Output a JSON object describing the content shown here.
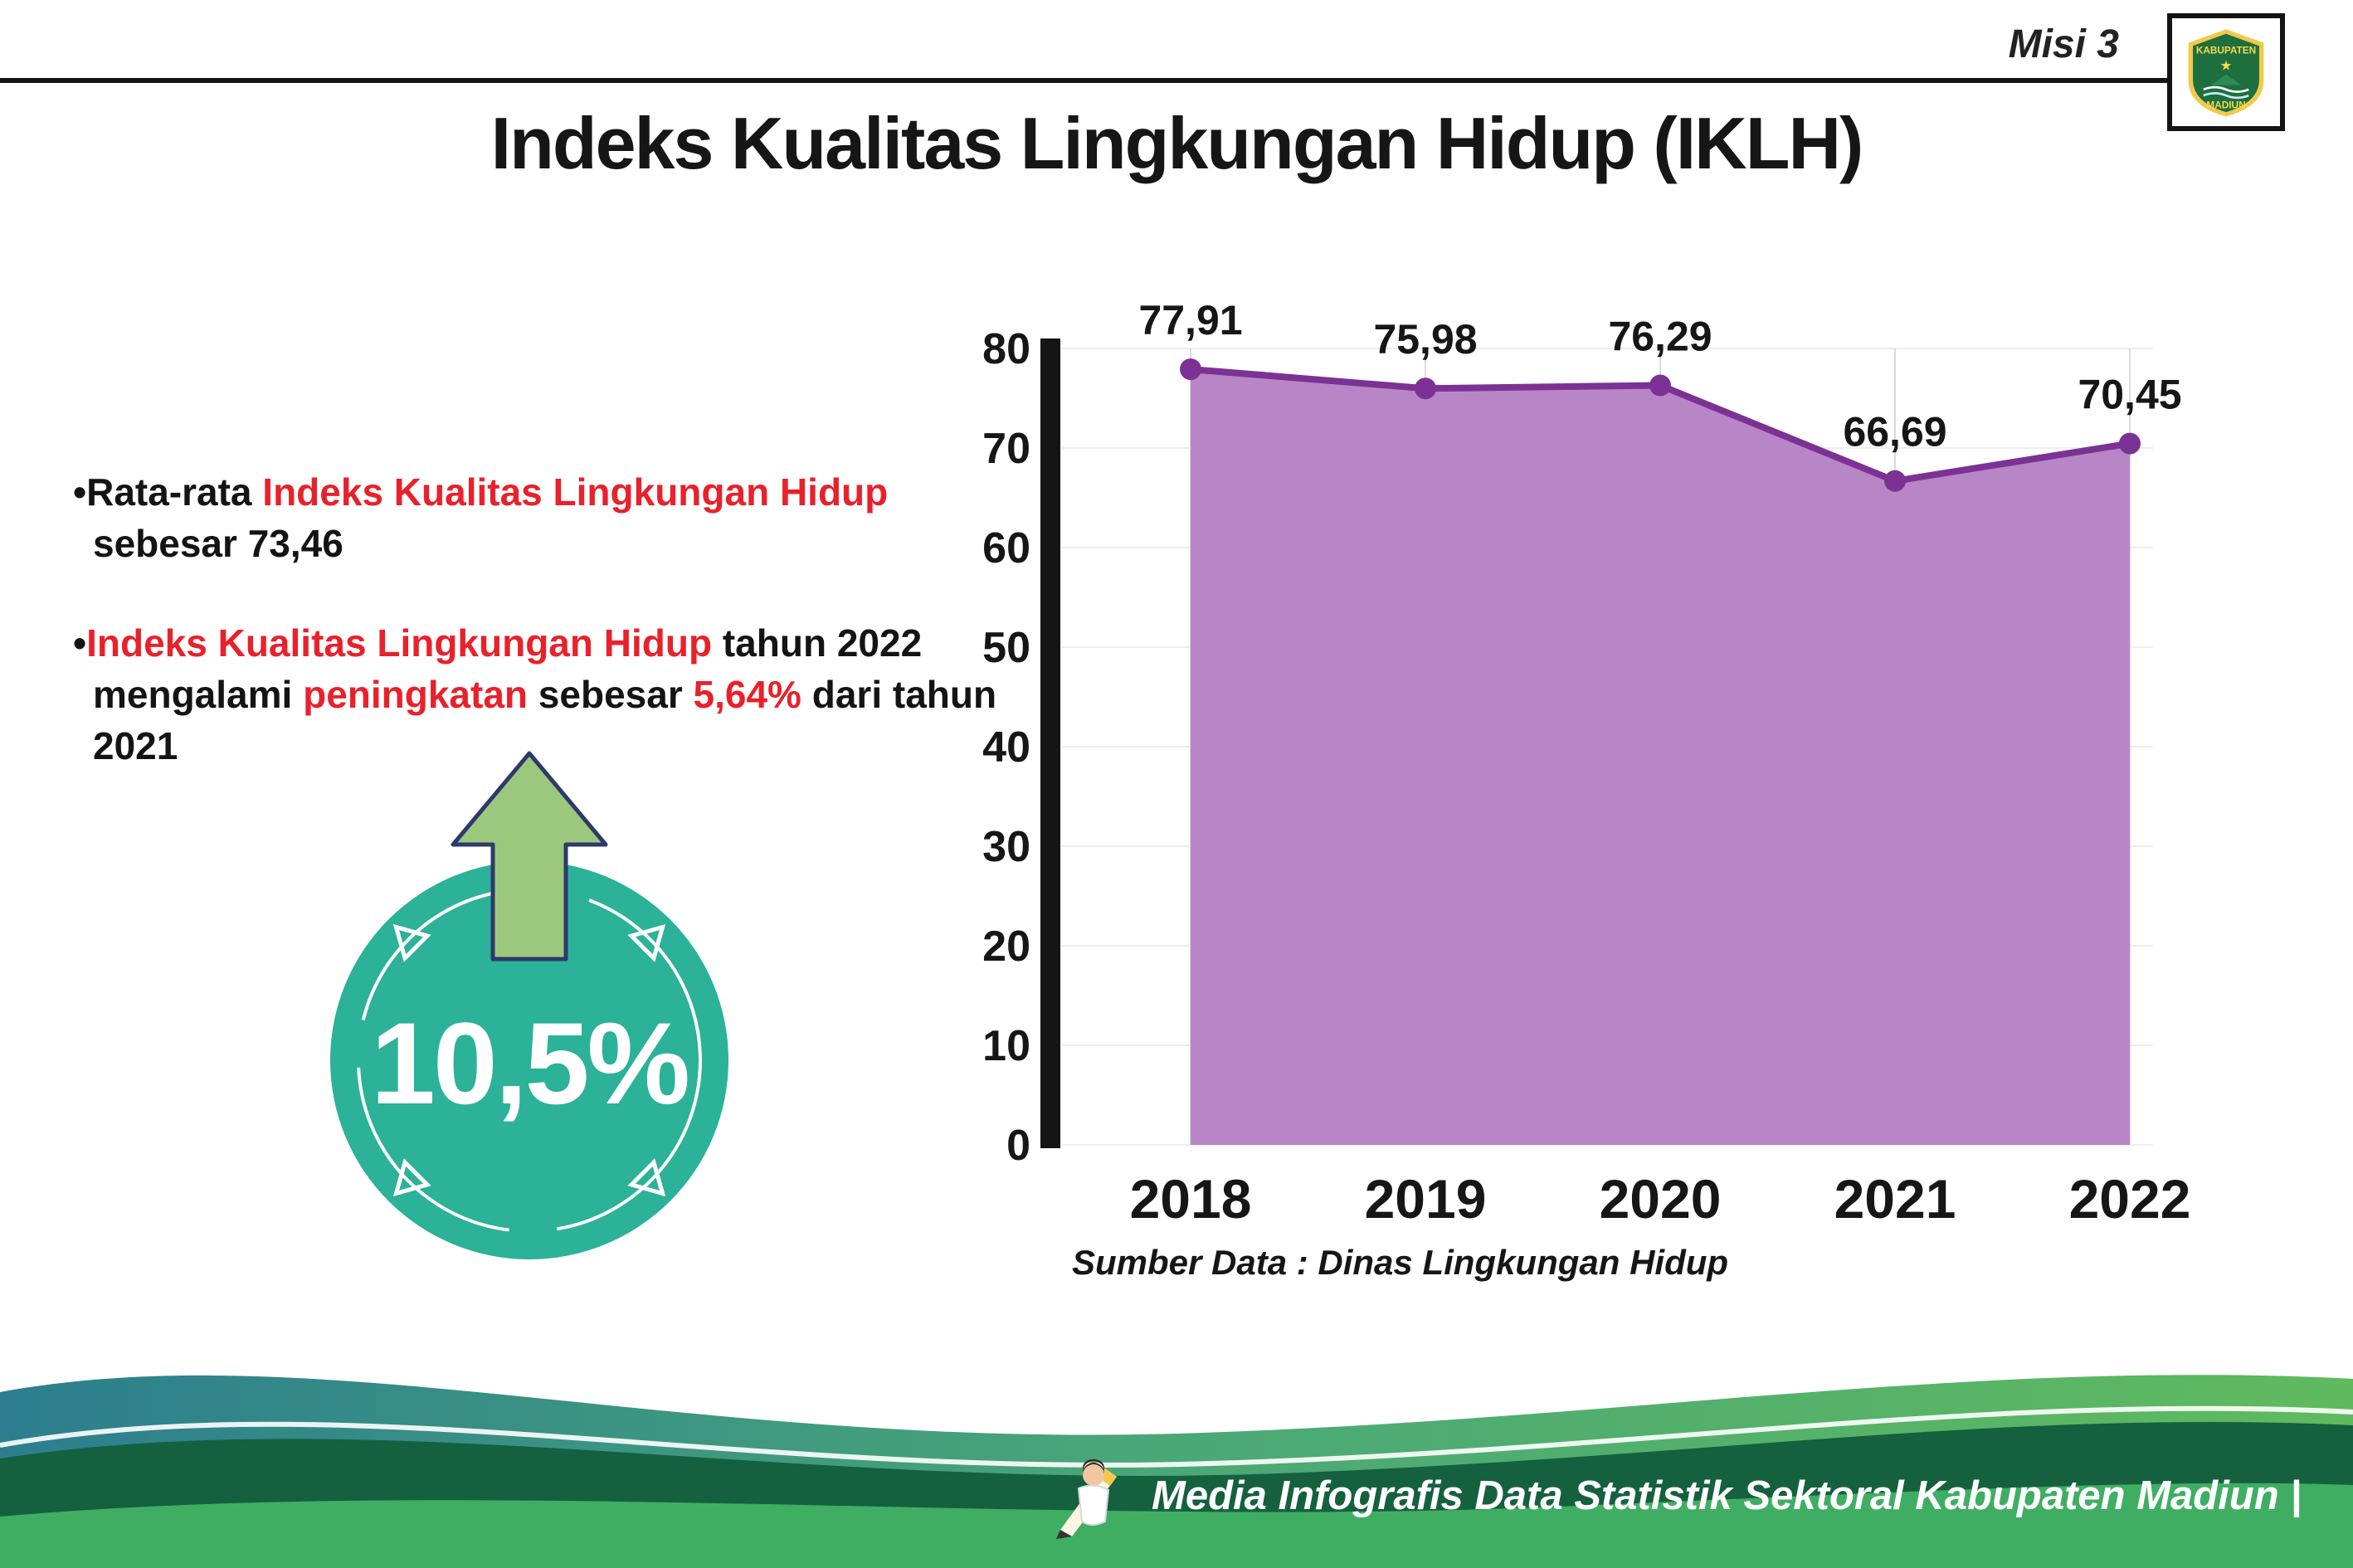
{
  "header": {
    "misi_label": "Misi 3",
    "logo_top": "KABUPATEN",
    "logo_bottom": "MADIUN"
  },
  "title": "Indeks Kualitas Lingkungan Hidup (IKLH)",
  "bullets": {
    "items": [
      {
        "segments": [
          {
            "text": "•Rata-rata ",
            "style": "normal"
          },
          {
            "text": "Indeks Kualitas Lingkungan Hidup",
            "style": "red"
          },
          {
            "text": " sebesar 73,46",
            "style": "normal"
          }
        ]
      },
      {
        "segments": [
          {
            "text": "•",
            "style": "normal"
          },
          {
            "text": "Indeks Kualitas Lingkungan Hidup",
            "style": "red"
          },
          {
            "text": " tahun 2022 mengalami ",
            "style": "normal"
          },
          {
            "text": "peningkatan",
            "style": "red"
          },
          {
            "text": " sebesar ",
            "style": "normal"
          },
          {
            "text": "5,64%",
            "style": "red"
          },
          {
            "text": " dari tahun 2021",
            "style": "normal"
          }
        ]
      }
    ]
  },
  "badge": {
    "value": "10,5%",
    "circle_color": "#2bb298",
    "arrow_color": "#9cc87e"
  },
  "chart_data": {
    "type": "area",
    "title": "Indeks Kualitas Lingkungan Hidup (IKLH)",
    "categories": [
      "2018",
      "2019",
      "2020",
      "2021",
      "2022"
    ],
    "values": [
      77.91,
      75.98,
      76.29,
      66.69,
      70.45
    ],
    "value_labels": [
      "77,91",
      "75,98",
      "76,29",
      "66,69",
      "70,45"
    ],
    "xlabel": "",
    "ylabel": "",
    "ylim": [
      0,
      80
    ],
    "yticks": [
      0,
      10,
      20,
      30,
      40,
      50,
      60,
      70,
      80
    ],
    "grid": "light-vertical",
    "legend": "none",
    "area_color": "#b886c6",
    "line_color": "#7b3294",
    "point_color": "#7b3294"
  },
  "source": "Sumber Data : Dinas Lingkungan Hidup",
  "footer": {
    "credit": "Media Infografis Data Statistik Sektoral Kabupaten Madiun |"
  }
}
